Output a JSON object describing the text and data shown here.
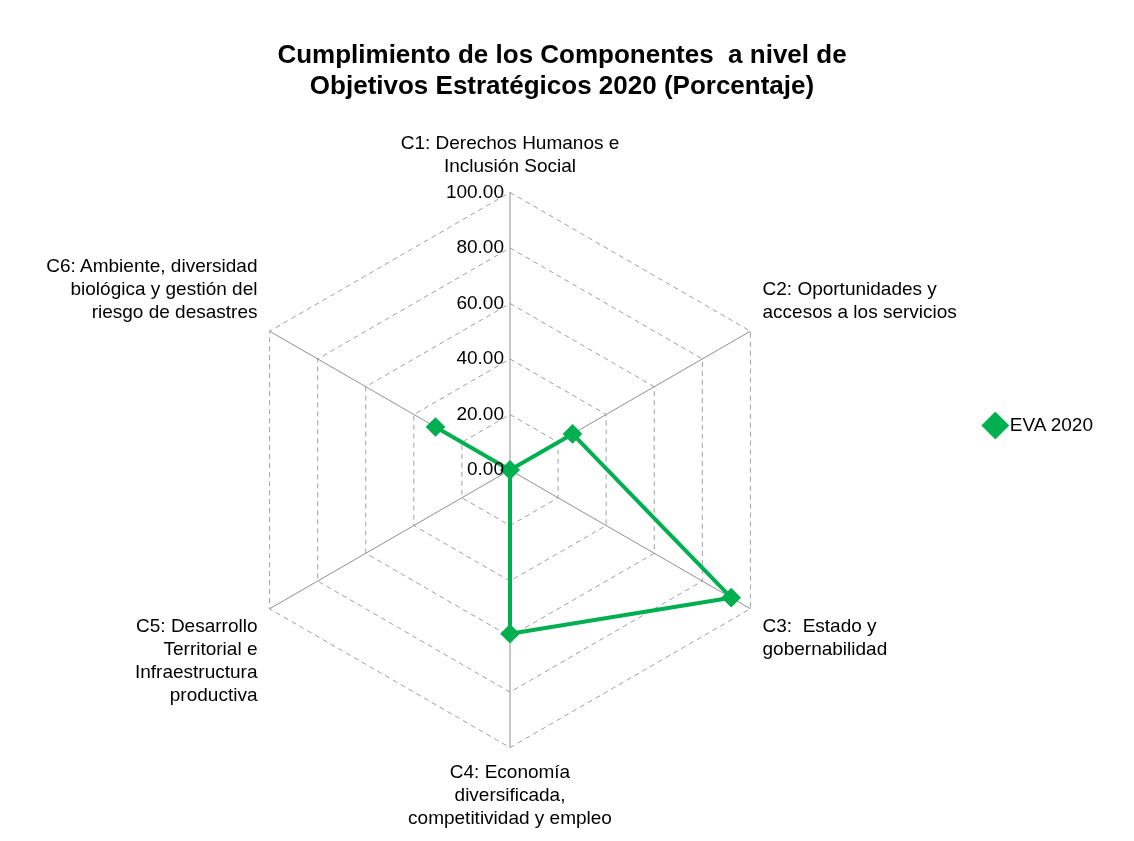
{
  "chart_data": {
    "type": "radar",
    "title": "Cumplimiento de los Componentes  a nivel de Objetivos Estratégicos 2020 (Porcentaje)",
    "categories": [
      "C1: Derechos Humanos e Inclusión Social",
      "C2: Oportunidades y accesos a los servicios",
      "C3:  Estado y gobernabilidad",
      "C4: Economía diversificada, competitividad y empleo",
      "C5: Desarrollo Territorial e Infraestructura productiva",
      "C6: Ambiente, diversidad biológica y gestión del riesgo de desastres"
    ],
    "series": [
      {
        "name": "EVA 2020",
        "color": "#00b050",
        "values": [
          0,
          26,
          92,
          59,
          0,
          31
        ]
      }
    ],
    "ylim": [
      0,
      100
    ],
    "yticks": [
      {
        "value": 0,
        "label": "0.00"
      },
      {
        "value": 20,
        "label": "20.00"
      },
      {
        "value": 40,
        "label": "40.00"
      },
      {
        "value": 60,
        "label": "60.00"
      },
      {
        "value": 80,
        "label": "80.00"
      },
      {
        "value": 100,
        "label": "100.00"
      }
    ],
    "grid": true,
    "legend": "right",
    "marker": "diamond",
    "line_style": "solid"
  }
}
